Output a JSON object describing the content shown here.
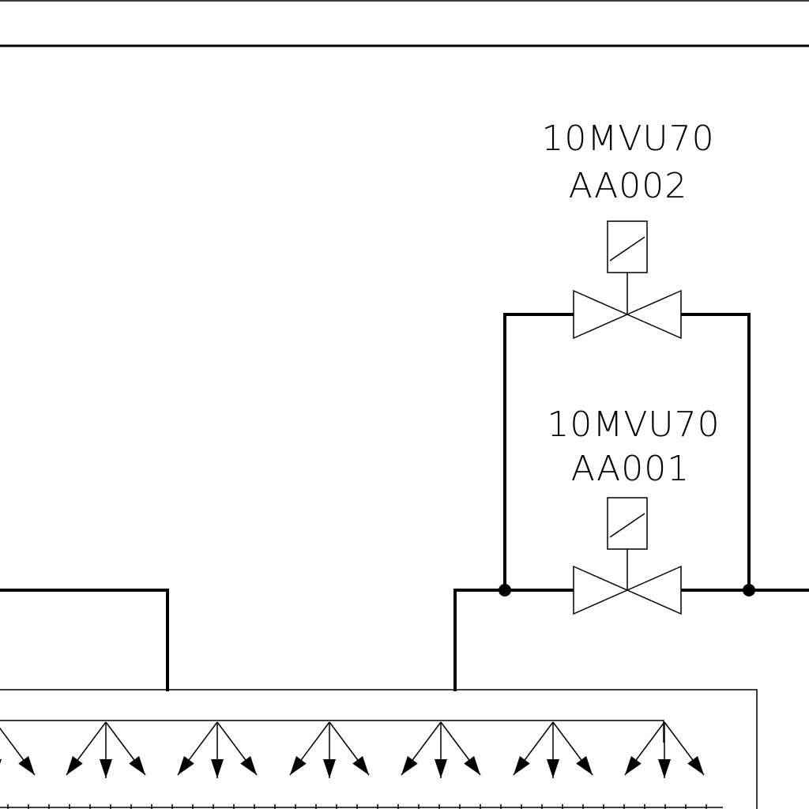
{
  "valves": [
    {
      "line1": "10MVU70",
      "line2": "AA002"
    },
    {
      "line1": "10MVU70",
      "line2": "AA001"
    }
  ],
  "colors": {
    "line": "#000000",
    "background": "#ffffff"
  }
}
